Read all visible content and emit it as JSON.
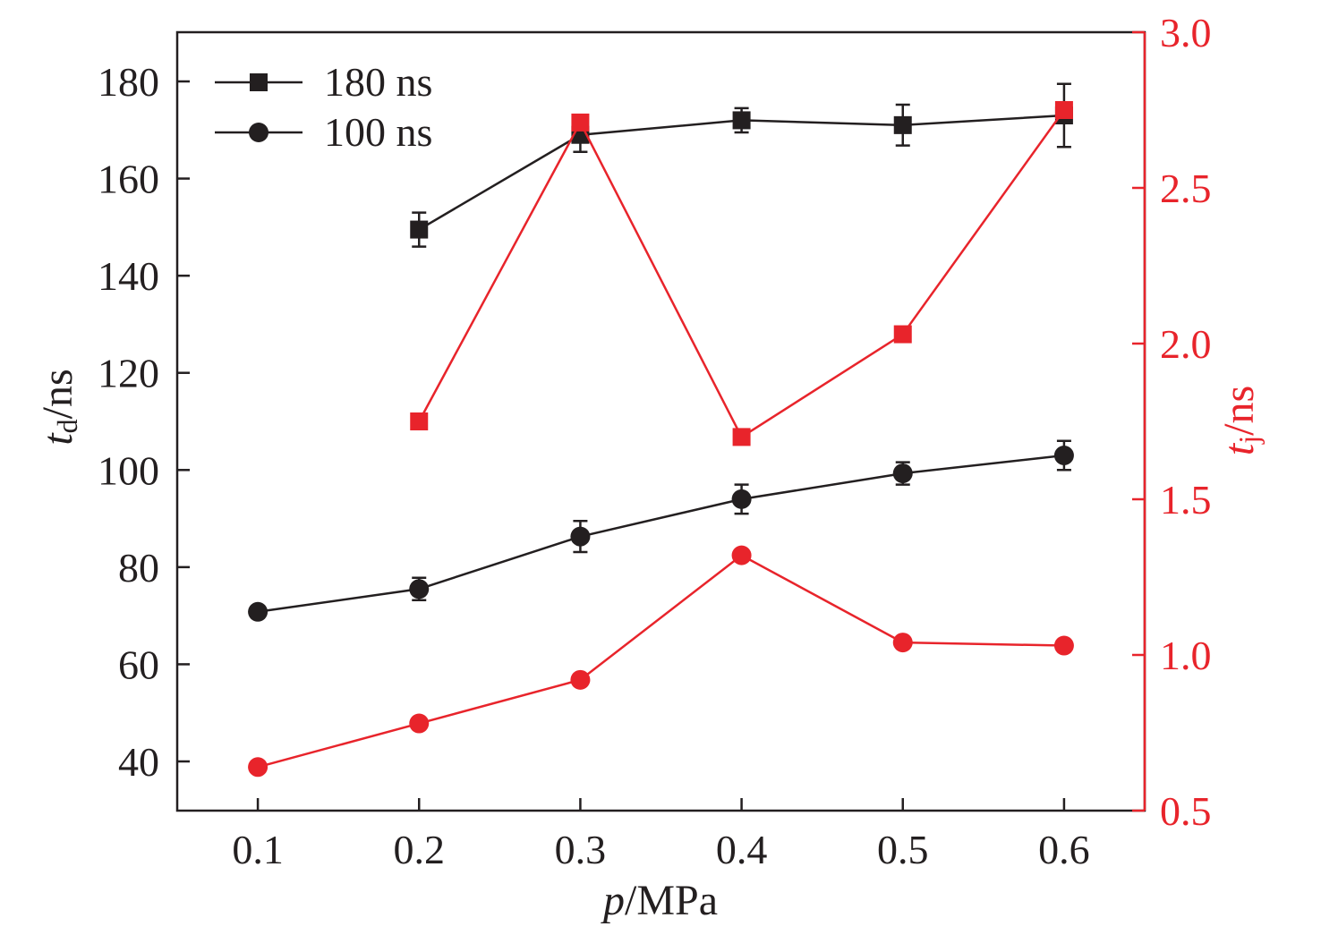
{
  "chart_data": {
    "type": "line",
    "x": [
      0.1,
      0.2,
      0.3,
      0.4,
      0.5,
      0.6
    ],
    "xlim": [
      0.05,
      0.65
    ],
    "xticks": [
      0.1,
      0.2,
      0.3,
      0.4,
      0.5,
      0.6
    ],
    "xtick_labels": [
      "0.1",
      "0.2",
      "0.3",
      "0.4",
      "0.5",
      "0.6"
    ],
    "xlabel": {
      "italic": "p",
      "rest": "/MPa"
    },
    "y_left": {
      "label": {
        "italic": "t",
        "sub": "d",
        "rest": "/ns"
      },
      "lim": [
        30,
        190
      ],
      "ticks": [
        40,
        60,
        80,
        100,
        120,
        140,
        160,
        180
      ],
      "tick_labels": [
        "40",
        "60",
        "80",
        "100",
        "120",
        "140",
        "160",
        "180"
      ],
      "color": "#231f20"
    },
    "y_right": {
      "label": {
        "italic": "t",
        "sub": "j",
        "rest": "/ns"
      },
      "lim": [
        0.5,
        3.0
      ],
      "ticks": [
        0.5,
        1.0,
        1.5,
        2.0,
        2.5,
        3.0
      ],
      "tick_labels": [
        "0.5",
        "1.0",
        "1.5",
        "2.0",
        "2.5",
        "3.0"
      ],
      "color": "#e8242b"
    },
    "series": [
      {
        "name": "180 ns",
        "axis": "left",
        "marker": "square",
        "color": "#231f20",
        "x": [
          0.2,
          0.3,
          0.4,
          0.5,
          0.6
        ],
        "values": [
          149.5,
          169,
          172,
          171,
          173
        ],
        "errors": [
          3.5,
          3.5,
          2.5,
          4.2,
          6.5
        ]
      },
      {
        "name": "100 ns",
        "axis": "left",
        "marker": "circle",
        "color": "#231f20",
        "x": [
          0.1,
          0.2,
          0.3,
          0.4,
          0.5,
          0.6
        ],
        "values": [
          70.8,
          75.5,
          86.3,
          94,
          99.3,
          103
        ],
        "errors": [
          0,
          2.3,
          3.2,
          3.0,
          2.3,
          3.0
        ]
      },
      {
        "axis": "right",
        "marker": "square",
        "color": "#e8242b",
        "x": [
          0.2,
          0.3,
          0.4,
          0.5,
          0.6
        ],
        "values": [
          1.75,
          2.71,
          1.7,
          2.03,
          2.75
        ]
      },
      {
        "axis": "right",
        "marker": "circle",
        "color": "#e8242b",
        "x": [
          0.1,
          0.2,
          0.3,
          0.4,
          0.5,
          0.6
        ],
        "values": [
          0.64,
          0.78,
          0.92,
          1.32,
          1.04,
          1.03
        ]
      }
    ],
    "legend": {
      "placement": "top-left",
      "entries": [
        "180 ns",
        "100 ns"
      ]
    }
  }
}
